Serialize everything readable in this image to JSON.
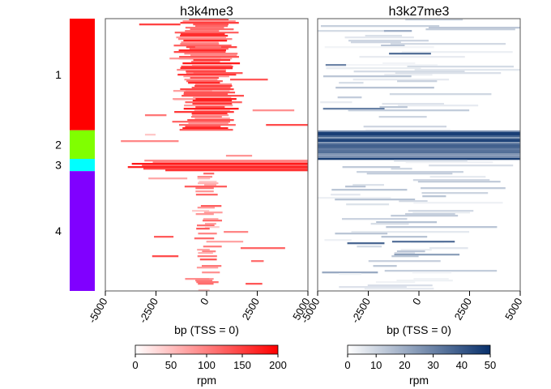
{
  "chart_data": {
    "type": "heatmap",
    "clusters": [
      {
        "label": "1",
        "color": "#FF0000",
        "fraction": 0.41
      },
      {
        "label": "2",
        "color": "#80FF00",
        "fraction": 0.105
      },
      {
        "label": "3",
        "color": "#00FFFF",
        "fraction": 0.045
      },
      {
        "label": "4",
        "color": "#8000FF",
        "fraction": 0.44
      }
    ],
    "panels": [
      {
        "title": "h3k4me3",
        "xlabel": "bp (TSS = 0)",
        "xlim": [
          -5000,
          5000
        ],
        "xticks": [
          -5000,
          -2500,
          0,
          2500,
          5000
        ],
        "xtick_labels": [
          "-5000",
          "-2500",
          "0",
          "2500",
          "5000"
        ],
        "color_low": "#FFFFFF",
        "color_high": "#FF0000",
        "colorbar": {
          "title": "rpm",
          "min": 0,
          "max": 200,
          "ticks": [
            0,
            50,
            100,
            150,
            200
          ],
          "tick_labels": [
            "0",
            "50",
            "100",
            "150",
            "200"
          ]
        },
        "signal_profile": "Strong signal centered on the TSS in cluster 1 (roughly -1000 to +1500 bp); a band of signal spanning the region in cluster 3; weak centered signal in cluster 4; scattered horizontal streaks in flanking regions."
      },
      {
        "title": "h3k27me3",
        "xlabel": "bp (TSS = 0)",
        "xlim": [
          -5000,
          5000
        ],
        "xticks": [
          -5000,
          -2500,
          0,
          2500,
          5000
        ],
        "xtick_labels": [
          "-5000",
          "-2500",
          "0",
          "2500",
          "5000"
        ],
        "color_low": "#FFFFFF",
        "color_high": "#08306B",
        "colorbar": {
          "title": "rpm",
          "min": 0,
          "max": 50,
          "ticks": [
            0,
            10,
            20,
            30,
            40,
            50
          ],
          "tick_labels": [
            "0",
            "10",
            "20",
            "30",
            "40",
            "50"
          ]
        },
        "signal_profile": "Broad strong signal across the full window in cluster 2; faint scattered streaks elsewhere."
      }
    ]
  }
}
